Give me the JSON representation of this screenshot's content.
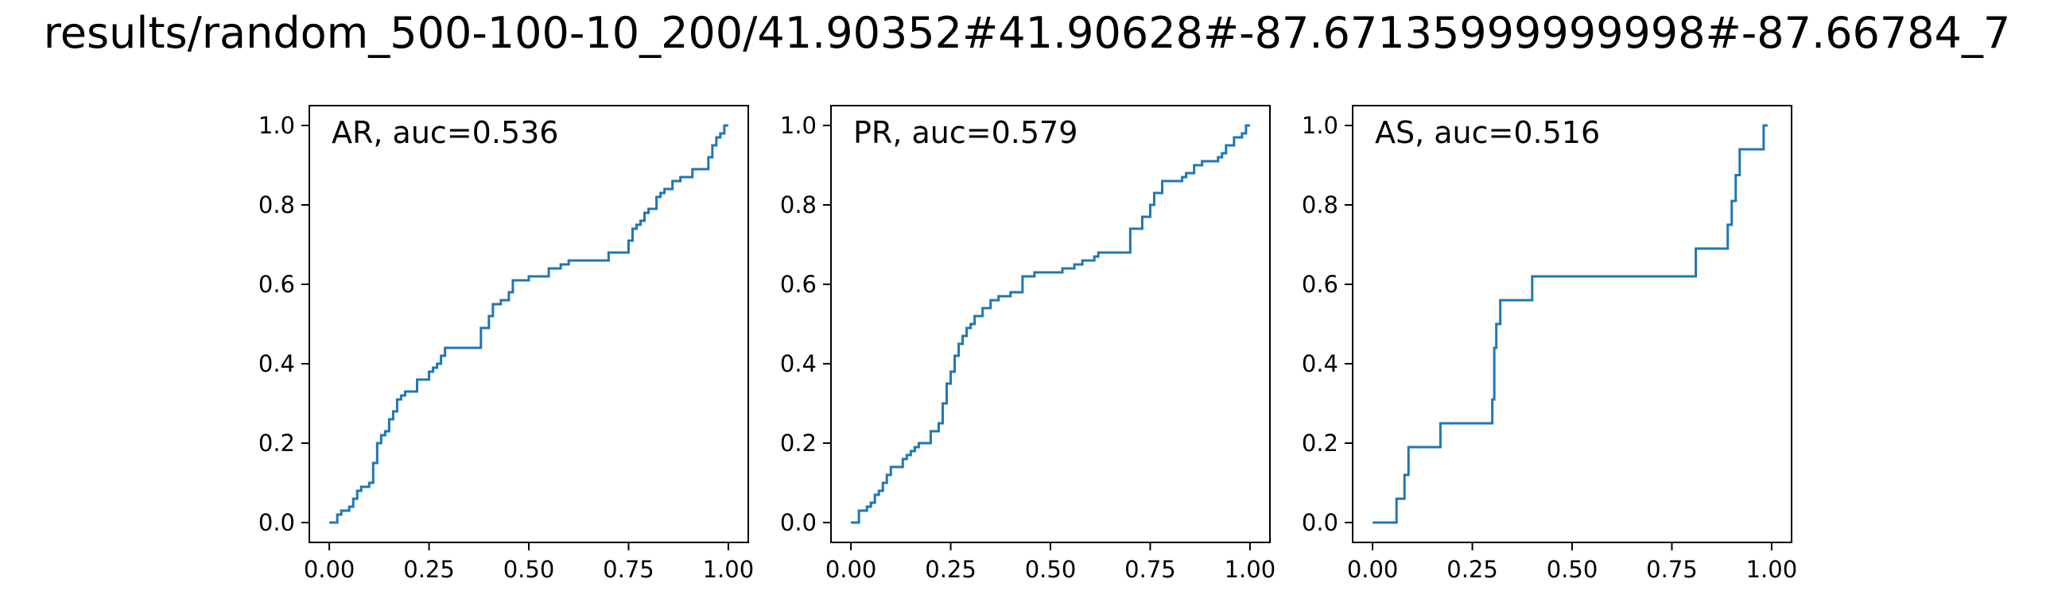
{
  "figure": {
    "title": "results/random_500-100-10_200/41.90352#41.90628#-87.67135999999998#-87.66784_7"
  },
  "style": {
    "line_color": "#1f77b4",
    "axis_color": "#000000",
    "background": "#ffffff"
  },
  "chart_data": [
    {
      "type": "line",
      "drawstyle": "steps-post",
      "annotation": "AR, auc=0.536",
      "xlim": [
        -0.05,
        1.05
      ],
      "ylim": [
        -0.05,
        1.05
      ],
      "x_ticks": [
        0.0,
        0.25,
        0.5,
        0.75,
        1.0
      ],
      "x_tick_labels": [
        "0.00",
        "0.25",
        "0.50",
        "0.75",
        "1.00"
      ],
      "y_ticks": [
        0.0,
        0.2,
        0.4,
        0.6,
        0.8,
        1.0
      ],
      "y_tick_labels": [
        "0.0",
        "0.2",
        "0.4",
        "0.6",
        "0.8",
        "1.0"
      ],
      "grid": false,
      "x": [
        0.0,
        0.02,
        0.03,
        0.05,
        0.06,
        0.07,
        0.08,
        0.1,
        0.11,
        0.12,
        0.13,
        0.14,
        0.15,
        0.16,
        0.17,
        0.18,
        0.19,
        0.2,
        0.22,
        0.25,
        0.26,
        0.27,
        0.28,
        0.29,
        0.3,
        0.38,
        0.39,
        0.4,
        0.41,
        0.43,
        0.45,
        0.46,
        0.48,
        0.5,
        0.52,
        0.55,
        0.56,
        0.58,
        0.6,
        0.63,
        0.65,
        0.7,
        0.75,
        0.76,
        0.77,
        0.78,
        0.79,
        0.8,
        0.82,
        0.83,
        0.84,
        0.86,
        0.88,
        0.89,
        0.91,
        0.92,
        0.95,
        0.96,
        0.97,
        0.98,
        0.99,
        1.0
      ],
      "y": [
        0.0,
        0.02,
        0.03,
        0.04,
        0.06,
        0.08,
        0.09,
        0.1,
        0.15,
        0.2,
        0.22,
        0.23,
        0.26,
        0.28,
        0.31,
        0.32,
        0.33,
        0.33,
        0.36,
        0.38,
        0.39,
        0.4,
        0.42,
        0.44,
        0.44,
        0.49,
        0.49,
        0.52,
        0.55,
        0.56,
        0.58,
        0.61,
        0.61,
        0.62,
        0.62,
        0.64,
        0.64,
        0.65,
        0.66,
        0.66,
        0.66,
        0.68,
        0.71,
        0.74,
        0.75,
        0.76,
        0.78,
        0.79,
        0.82,
        0.83,
        0.84,
        0.86,
        0.87,
        0.87,
        0.89,
        0.89,
        0.92,
        0.95,
        0.97,
        0.98,
        1.0,
        1.0
      ]
    },
    {
      "type": "line",
      "drawstyle": "steps-post",
      "annotation": "PR, auc=0.579",
      "xlim": [
        -0.05,
        1.05
      ],
      "ylim": [
        -0.05,
        1.05
      ],
      "x_ticks": [
        0.0,
        0.25,
        0.5,
        0.75,
        1.0
      ],
      "x_tick_labels": [
        "0.00",
        "0.25",
        "0.50",
        "0.75",
        "1.00"
      ],
      "y_ticks": [
        0.0,
        0.2,
        0.4,
        0.6,
        0.8,
        1.0
      ],
      "y_tick_labels": [
        "0.0",
        "0.2",
        "0.4",
        "0.6",
        "0.8",
        "1.0"
      ],
      "grid": false,
      "x": [
        0.0,
        0.02,
        0.04,
        0.05,
        0.06,
        0.07,
        0.08,
        0.09,
        0.1,
        0.11,
        0.13,
        0.14,
        0.15,
        0.16,
        0.17,
        0.19,
        0.2,
        0.21,
        0.22,
        0.23,
        0.24,
        0.25,
        0.26,
        0.27,
        0.28,
        0.29,
        0.3,
        0.31,
        0.33,
        0.35,
        0.37,
        0.4,
        0.43,
        0.46,
        0.5,
        0.53,
        0.56,
        0.58,
        0.61,
        0.62,
        0.63,
        0.7,
        0.73,
        0.75,
        0.76,
        0.78,
        0.82,
        0.83,
        0.84,
        0.86,
        0.88,
        0.9,
        0.92,
        0.93,
        0.94,
        0.96,
        0.98,
        0.99,
        1.0
      ],
      "y": [
        0.0,
        0.03,
        0.04,
        0.05,
        0.07,
        0.08,
        0.1,
        0.12,
        0.14,
        0.14,
        0.16,
        0.17,
        0.18,
        0.19,
        0.2,
        0.2,
        0.23,
        0.23,
        0.25,
        0.3,
        0.35,
        0.38,
        0.42,
        0.45,
        0.47,
        0.49,
        0.5,
        0.52,
        0.54,
        0.56,
        0.57,
        0.58,
        0.62,
        0.63,
        0.63,
        0.64,
        0.65,
        0.66,
        0.67,
        0.68,
        0.68,
        0.74,
        0.77,
        0.8,
        0.83,
        0.86,
        0.86,
        0.87,
        0.88,
        0.9,
        0.91,
        0.91,
        0.92,
        0.93,
        0.95,
        0.97,
        0.98,
        1.0,
        1.0
      ]
    },
    {
      "type": "line",
      "drawstyle": "steps-post",
      "annotation": "AS, auc=0.516",
      "xlim": [
        -0.05,
        1.05
      ],
      "ylim": [
        -0.05,
        1.05
      ],
      "x_ticks": [
        0.0,
        0.25,
        0.5,
        0.75,
        1.0
      ],
      "x_tick_labels": [
        "0.00",
        "0.25",
        "0.50",
        "0.75",
        "1.00"
      ],
      "y_ticks": [
        0.0,
        0.2,
        0.4,
        0.6,
        0.8,
        1.0
      ],
      "y_tick_labels": [
        "0.0",
        "0.2",
        "0.4",
        "0.6",
        "0.8",
        "1.0"
      ],
      "grid": false,
      "x": [
        0.0,
        0.06,
        0.08,
        0.09,
        0.17,
        0.3,
        0.305,
        0.31,
        0.32,
        0.4,
        0.81,
        0.87,
        0.89,
        0.9,
        0.91,
        0.92,
        0.93,
        0.98,
        0.99
      ],
      "y": [
        0.0,
        0.06,
        0.12,
        0.19,
        0.25,
        0.31,
        0.44,
        0.5,
        0.56,
        0.62,
        0.69,
        0.69,
        0.75,
        0.81,
        0.875,
        0.94,
        0.94,
        1.0,
        1.0
      ]
    }
  ]
}
